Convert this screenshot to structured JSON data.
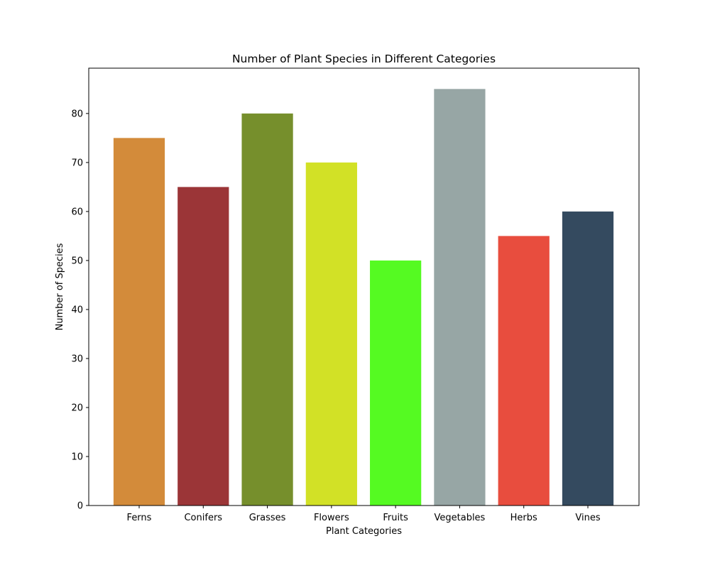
{
  "chart_data": {
    "type": "bar",
    "title": "Number of Plant Species in Different Categories",
    "xlabel": "Plant Categories",
    "ylabel": "Number of Species",
    "categories": [
      "Ferns",
      "Conifers",
      "Grasses",
      "Flowers",
      "Fruits",
      "Vegetables",
      "Herbs",
      "Vines"
    ],
    "values": [
      75,
      65,
      80,
      70,
      50,
      85,
      55,
      60
    ],
    "colors": [
      "#d38b3a",
      "#9b3537",
      "#768f2c",
      "#d2e126",
      "#55fa22",
      "#97a6a5",
      "#e84d3e",
      "#344a5f"
    ],
    "ylim": [
      0,
      89.25
    ],
    "yticks": [
      0,
      10,
      20,
      30,
      40,
      50,
      60,
      70,
      80
    ],
    "grid": false,
    "legend": "none"
  }
}
